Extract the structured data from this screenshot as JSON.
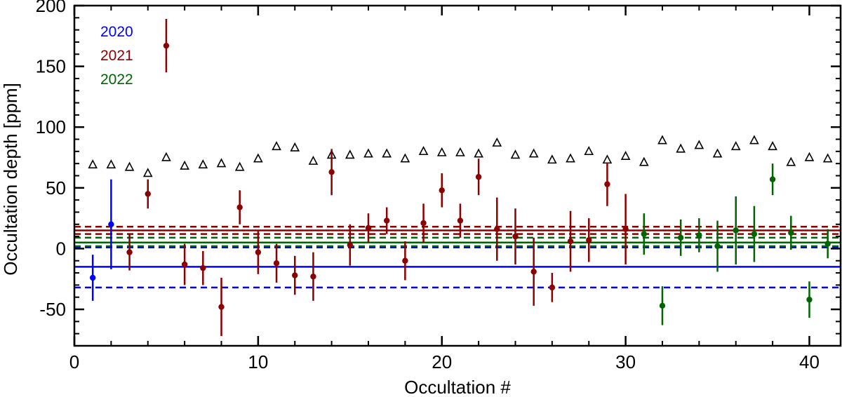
{
  "chart_data": {
    "type": "scatter",
    "title": "",
    "xlabel": "Occultation #",
    "ylabel": "Occultation depth [ppm]",
    "xlim": [
      0,
      41.7
    ],
    "ylim": [
      -80,
      200
    ],
    "xticks": [
      0,
      10,
      20,
      30,
      40
    ],
    "yticks": [
      -50,
      0,
      50,
      100,
      150,
      200
    ],
    "legend": [
      {
        "label": "2020",
        "color": "#0000ff"
      },
      {
        "label": "2021",
        "color": "#8b0000"
      },
      {
        "label": "2022",
        "color": "#006400"
      }
    ],
    "series": [
      {
        "name": "2020",
        "color": "#0000ff",
        "points": [
          {
            "x": 1,
            "y": -24,
            "err": 19
          },
          {
            "x": 2,
            "y": 20,
            "err": 37
          }
        ]
      },
      {
        "name": "2021",
        "color": "#8b0000",
        "points": [
          {
            "x": 3,
            "y": -3,
            "err": 15
          },
          {
            "x": 4,
            "y": 45,
            "err": 12
          },
          {
            "x": 5,
            "y": 167,
            "err": 22
          },
          {
            "x": 6,
            "y": -13,
            "err": 17
          },
          {
            "x": 7,
            "y": -16,
            "err": 14
          },
          {
            "x": 8,
            "y": -48,
            "err": 24
          },
          {
            "x": 9,
            "y": 34,
            "err": 14
          },
          {
            "x": 10,
            "y": -3,
            "err": 18
          },
          {
            "x": 11,
            "y": -12,
            "err": 16
          },
          {
            "x": 12,
            "y": -22,
            "err": 16
          },
          {
            "x": 13,
            "y": -23,
            "err": 20
          },
          {
            "x": 14,
            "y": 63,
            "err": 19
          },
          {
            "x": 15,
            "y": 3,
            "err": 17
          },
          {
            "x": 16,
            "y": 17,
            "err": 12
          },
          {
            "x": 17,
            "y": 23,
            "err": 11
          },
          {
            "x": 18,
            "y": -10,
            "err": 16
          },
          {
            "x": 19,
            "y": 21,
            "err": 16
          },
          {
            "x": 20,
            "y": 48,
            "err": 14
          },
          {
            "x": 21,
            "y": 23,
            "err": 14
          },
          {
            "x": 22,
            "y": 59,
            "err": 15
          },
          {
            "x": 23,
            "y": 16,
            "err": 26
          },
          {
            "x": 24,
            "y": 10,
            "err": 23
          },
          {
            "x": 25,
            "y": -19,
            "err": 28
          },
          {
            "x": 26,
            "y": -32,
            "err": 12
          },
          {
            "x": 27,
            "y": 6,
            "err": 25
          },
          {
            "x": 28,
            "y": 7,
            "err": 18
          },
          {
            "x": 29,
            "y": 53,
            "err": 18
          },
          {
            "x": 30,
            "y": 16,
            "err": 29
          }
        ]
      },
      {
        "name": "2022",
        "color": "#006400",
        "points": [
          {
            "x": 31,
            "y": 12,
            "err": 17
          },
          {
            "x": 32,
            "y": -47,
            "err": 16
          },
          {
            "x": 33,
            "y": 9,
            "err": 15
          },
          {
            "x": 34,
            "y": 11,
            "err": 14
          },
          {
            "x": 35,
            "y": 2,
            "err": 21
          },
          {
            "x": 36,
            "y": 15,
            "err": 28
          },
          {
            "x": 37,
            "y": 12,
            "err": 23
          },
          {
            "x": 38,
            "y": 57,
            "err": 13
          },
          {
            "x": 39,
            "y": 13,
            "err": 14
          },
          {
            "x": 40,
            "y": -42,
            "err": 15
          },
          {
            "x": 41,
            "y": 4,
            "err": 12
          }
        ]
      },
      {
        "name": "triangles",
        "color": "#000000",
        "marker": "open-triangle",
        "values": [
          69,
          69,
          67,
          62,
          75,
          68,
          69,
          70,
          67,
          74,
          84,
          83,
          72,
          77,
          77,
          78,
          78,
          74,
          80,
          79,
          79,
          78,
          87,
          77,
          78,
          73,
          74,
          80,
          73,
          76,
          71,
          89,
          82,
          85,
          78,
          84,
          89,
          84,
          71,
          75,
          74
        ]
      }
    ],
    "reference_lines": [
      {
        "name": "2020-mean",
        "y": -15,
        "color": "#0000ff",
        "style": "solid"
      },
      {
        "name": "2020-upper",
        "y": 1,
        "color": "#0000ff",
        "style": "dashed"
      },
      {
        "name": "2020-lower",
        "y": -32,
        "color": "#0000ff",
        "style": "dashed"
      },
      {
        "name": "2021-mean",
        "y": 15,
        "color": "#8b0000",
        "style": "solid"
      },
      {
        "name": "2021-upper",
        "y": 18,
        "color": "#8b0000",
        "style": "dashed"
      },
      {
        "name": "2021-lower",
        "y": 12,
        "color": "#8b0000",
        "style": "dashed"
      },
      {
        "name": "2022-mean",
        "y": 5,
        "color": "#006400",
        "style": "solid"
      },
      {
        "name": "2022-upper",
        "y": 9,
        "color": "#006400",
        "style": "dashed"
      },
      {
        "name": "2022-lower",
        "y": 2,
        "color": "#006400",
        "style": "dashed"
      }
    ]
  }
}
